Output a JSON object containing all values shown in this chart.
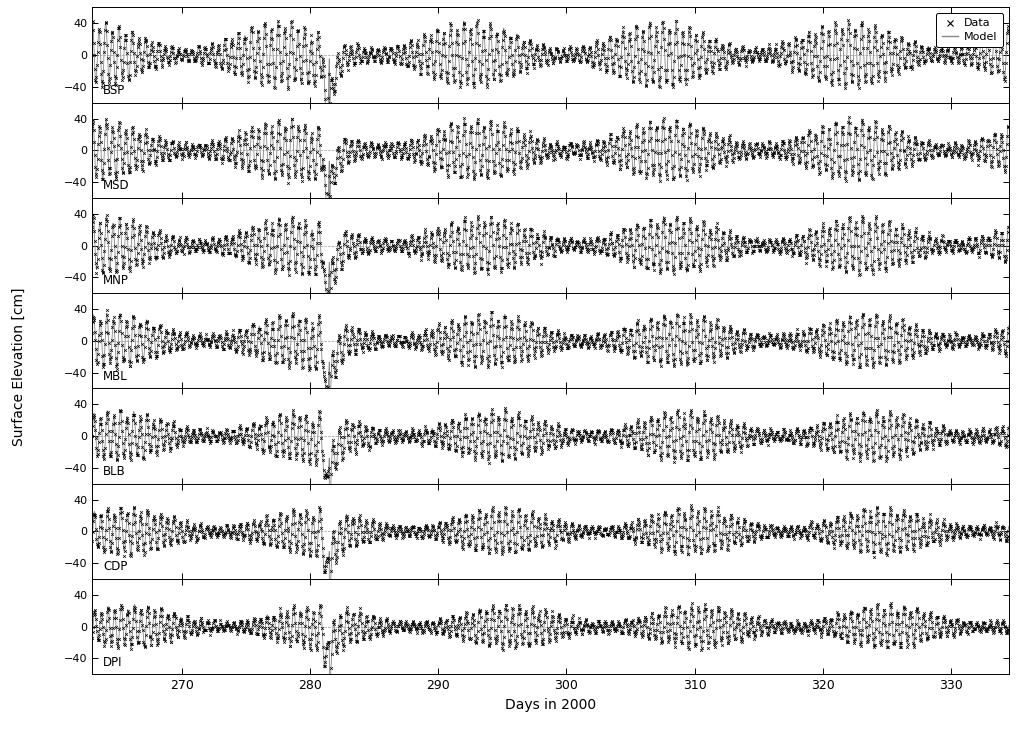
{
  "stations": [
    "BSP",
    "MSD",
    "MNP",
    "MBL",
    "BLB",
    "CDP",
    "DPI"
  ],
  "t_start": 263.0,
  "t_end": 334.5,
  "xlim_start": 263.0,
  "xlim_end": 334.5,
  "ylim": [
    -60,
    60
  ],
  "yticks": [
    -40,
    0,
    40
  ],
  "xticks": [
    270,
    280,
    290,
    300,
    310,
    320,
    330
  ],
  "xlabel": "Days in 2000",
  "ylabel": "Surface Elevation [cm]",
  "data_color": "#000000",
  "model_color": "#888888",
  "background_color": "white",
  "figsize": [
    10.24,
    7.33
  ],
  "dpi": 100,
  "storm_day": 281.5,
  "tidal_period_semidiurnal": 0.5175,
  "tidal_period_diurnal": 1.035,
  "spring_neap_period": 14.77,
  "station_amps": [
    38,
    35,
    33,
    31,
    29,
    27,
    25
  ],
  "storm_amps": [
    -80,
    -70,
    -75,
    -80,
    -72,
    -60,
    -48
  ],
  "phase_offsets": [
    0.0,
    0.03,
    0.06,
    0.09,
    0.12,
    0.15,
    0.18
  ],
  "sn_phase_offsets": [
    0.0,
    0.5,
    1.0,
    1.5,
    2.0,
    2.5,
    3.0
  ],
  "data_dt": 0.0417,
  "model_dt": 0.005
}
